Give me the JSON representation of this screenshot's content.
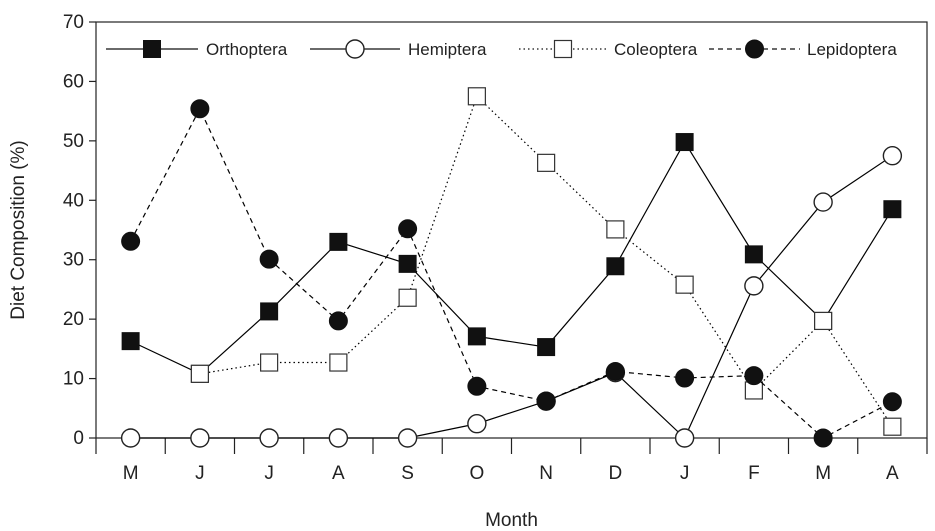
{
  "chart_data": {
    "type": "line",
    "title": "",
    "xlabel": "Month",
    "ylabel": "Diet Composition (%)",
    "categories": [
      "M",
      "J",
      "J",
      "A",
      "S",
      "O",
      "N",
      "D",
      "J",
      "F",
      "M",
      "A"
    ],
    "ylim": [
      0,
      70
    ],
    "yticks": [
      0,
      10,
      20,
      30,
      40,
      50,
      60,
      70
    ],
    "grid": false,
    "legend_position": "top",
    "series": [
      {
        "name": "Orthoptera",
        "marker": "filled-square",
        "line": "solid",
        "color": "#000000",
        "values": [
          16.3,
          10.8,
          21.3,
          33.0,
          29.3,
          17.1,
          15.3,
          28.9,
          49.8,
          30.9,
          19.7,
          38.5
        ]
      },
      {
        "name": "Hemiptera",
        "marker": "open-circle",
        "line": "solid",
        "color": "#000000",
        "values": [
          0,
          0,
          0,
          0,
          0,
          2.4,
          6.2,
          11.0,
          0,
          25.6,
          39.7,
          47.5
        ]
      },
      {
        "name": "Coleoptera",
        "marker": "open-square",
        "line": "dotted",
        "color": "#000000",
        "values": [
          null,
          10.8,
          12.7,
          12.7,
          23.6,
          57.5,
          46.3,
          35.1,
          25.8,
          8.0,
          19.7,
          1.9
        ]
      },
      {
        "name": "Lepidoptera",
        "marker": "filled-circle",
        "line": "dashed",
        "color": "#000000",
        "values": [
          33.1,
          55.4,
          30.1,
          19.7,
          35.2,
          8.7,
          6.2,
          11.2,
          10.1,
          10.5,
          0,
          6.1
        ]
      }
    ]
  }
}
